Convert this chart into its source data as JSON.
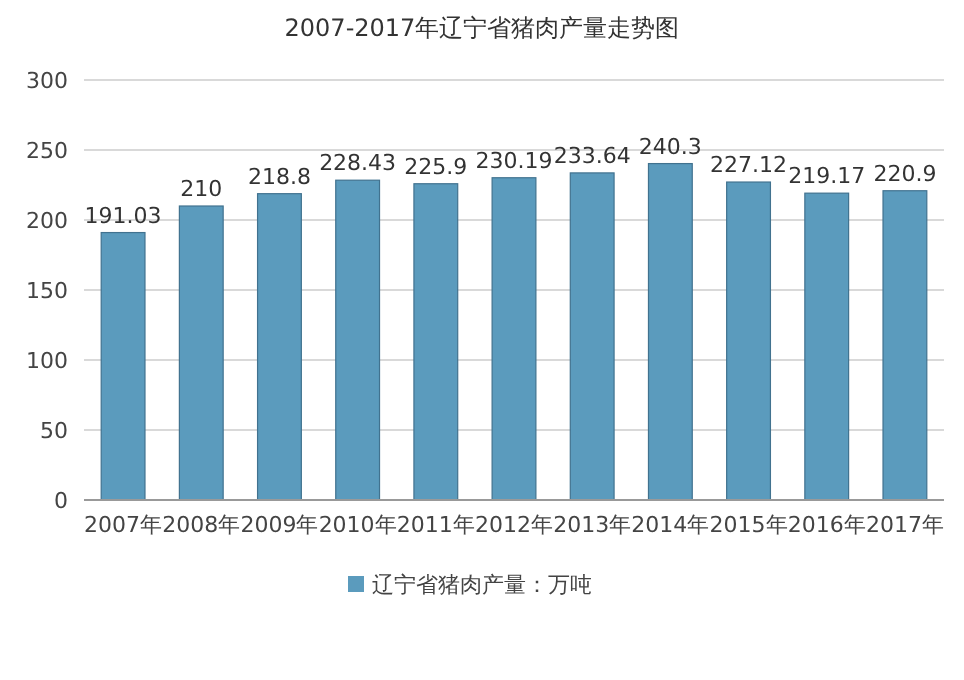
{
  "chart_data": {
    "type": "bar",
    "title": "2007-2017年辽宁省猪肉产量走势图",
    "categories": [
      "2007年",
      "2008年",
      "2009年",
      "2010年",
      "2011年",
      "2012年",
      "2013年",
      "2014年",
      "2015年",
      "2016年",
      "2017年"
    ],
    "series": [
      {
        "name": "辽宁省猪肉产量：万吨",
        "color": "#5b9bbd",
        "values": [
          191.03,
          210,
          218.8,
          228.43,
          225.9,
          230.19,
          233.64,
          240.3,
          227.12,
          219.17,
          220.9
        ]
      }
    ],
    "ylim": [
      0,
      300
    ],
    "yticks": [
      0,
      50,
      100,
      150,
      200,
      250,
      300
    ],
    "grid": "y",
    "legend": "bottom",
    "data_labels": true
  }
}
